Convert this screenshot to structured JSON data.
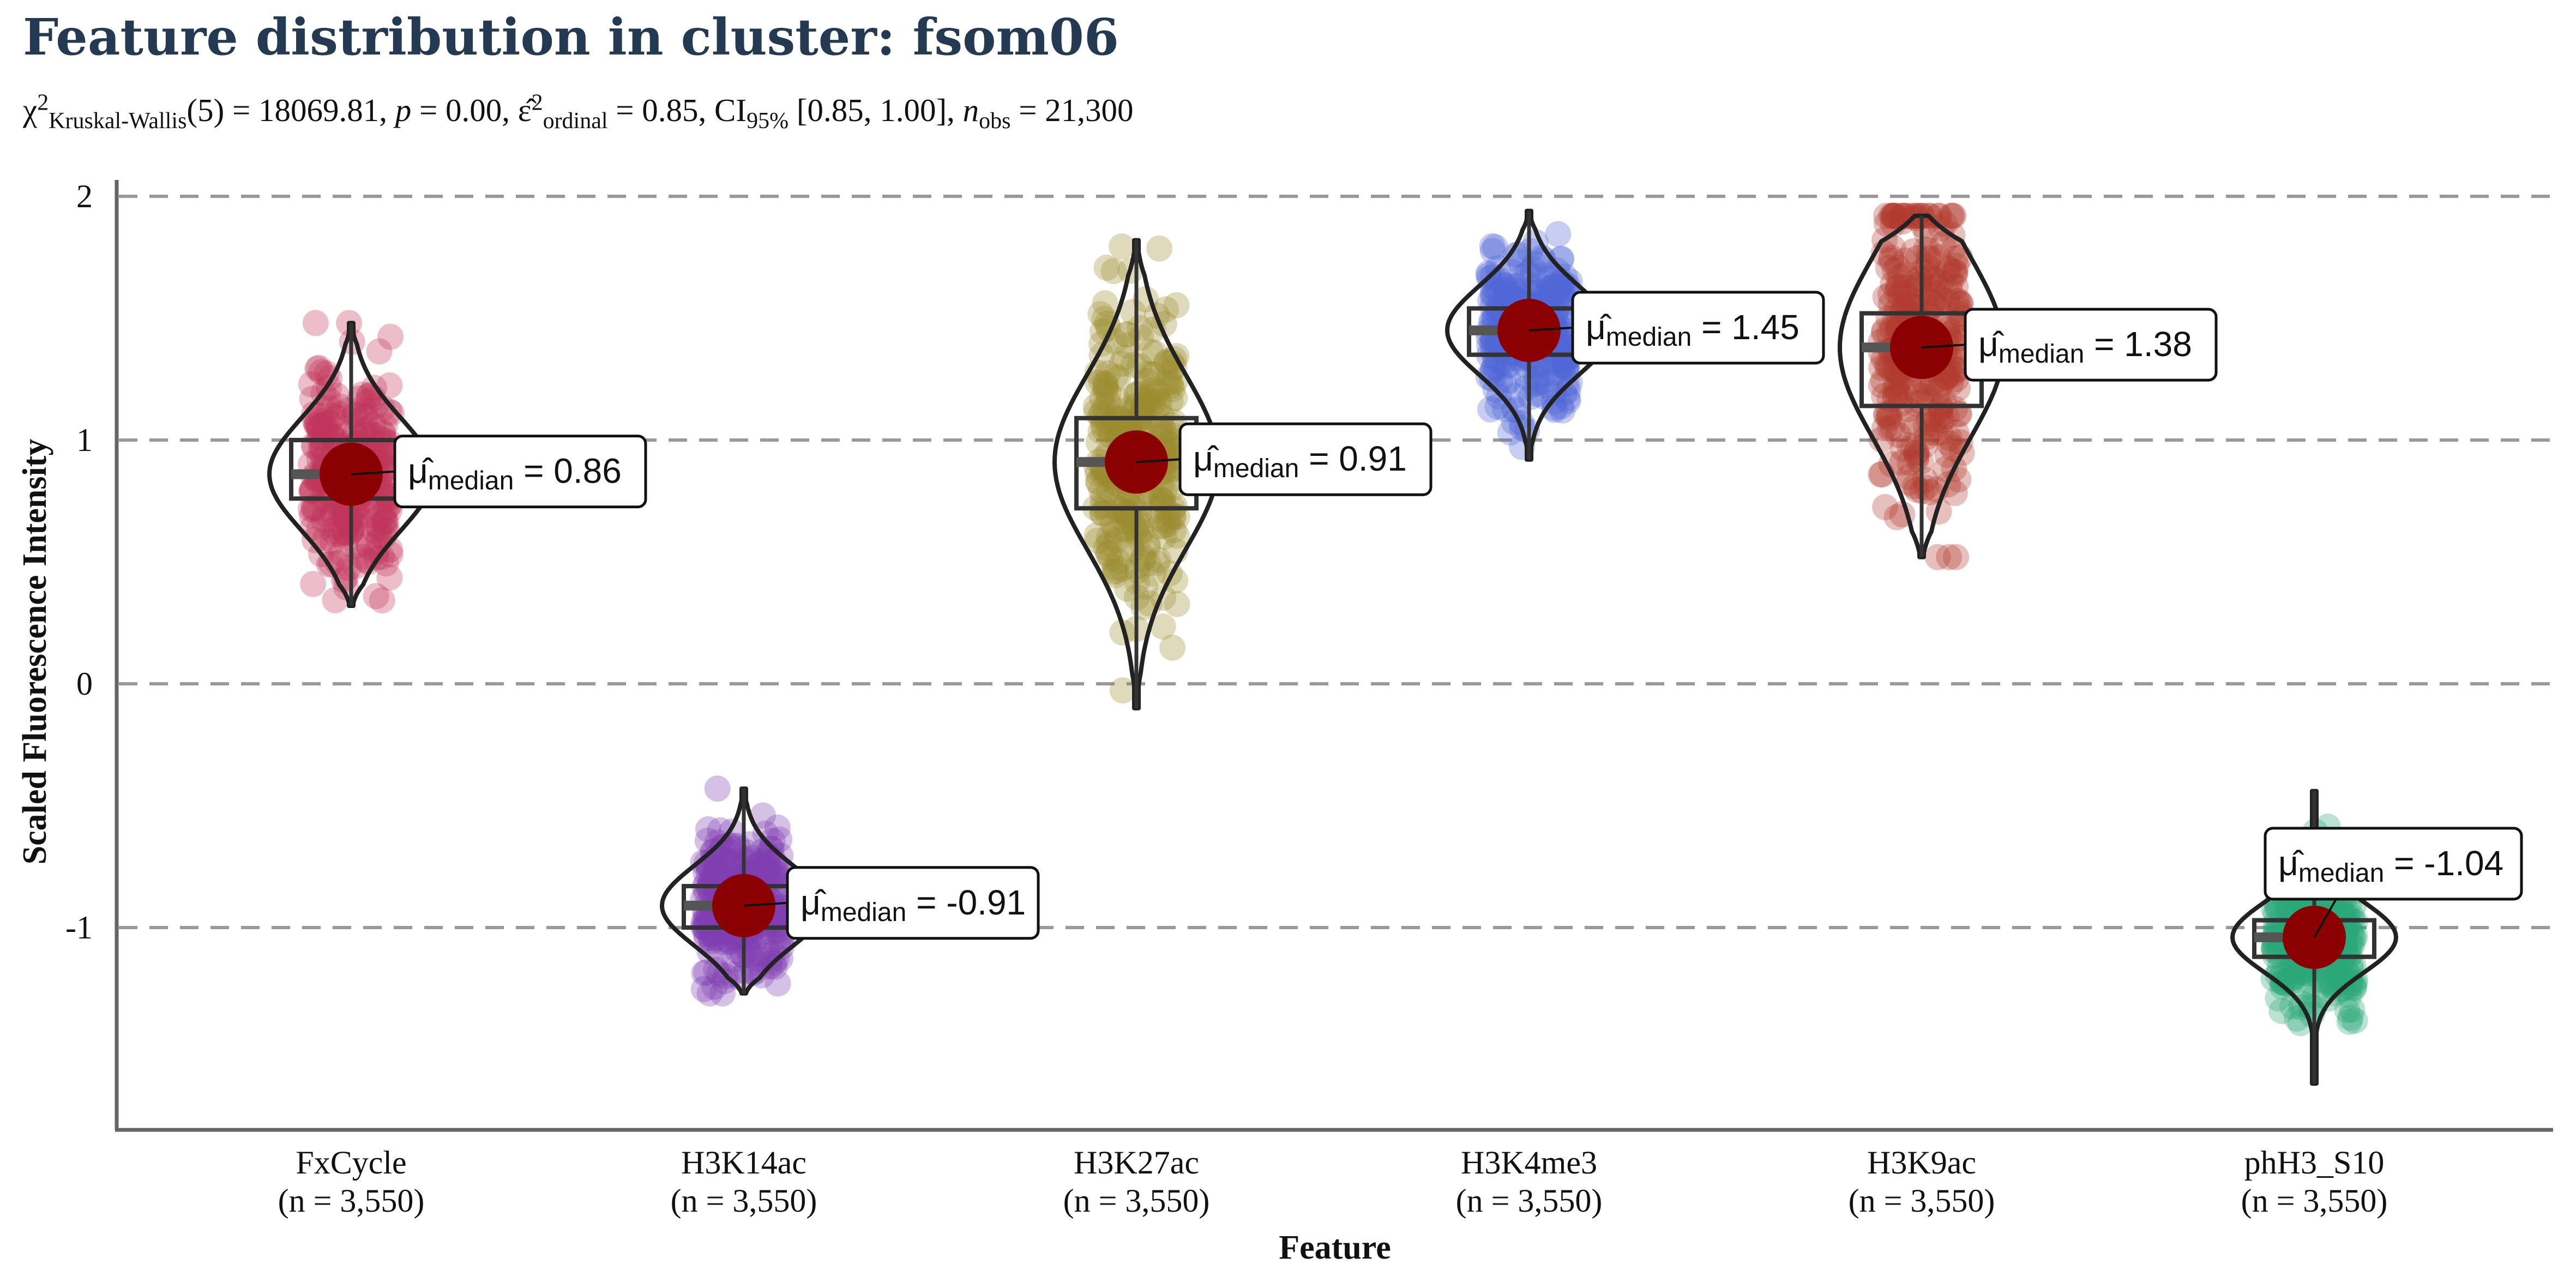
{
  "chart_data": {
    "type": "violin",
    "title": "Feature distribution in cluster: fsom06",
    "subtitle": {
      "chi_symbol": "χ",
      "chi_sup": "2",
      "chi_sub": "Kruskal-Wallis",
      "df_text": "(5) = 18069.81, ",
      "p_label": "p",
      "p_text": " = 0.00, ",
      "eps_symbol": "ε̂",
      "eps_sup": "2",
      "eps_sub": "ordinal",
      "eps_text": " = 0.85, CI",
      "ci_sub": "95%",
      "ci_text": " [0.85, 1.00], ",
      "n_label": "n",
      "n_sub": "obs",
      "n_text": " = 21,300"
    },
    "xlabel": "Feature",
    "ylabel": "Scaled Fluorescence Intensity",
    "ylim": [
      -1.83,
      2.05
    ],
    "yticks": [
      2,
      1,
      0,
      -1
    ],
    "ytick_labels": [
      "2",
      "1",
      "0",
      "-1"
    ],
    "grid": "horizontal dashed at major ticks",
    "median_label_prefix": "μ̂",
    "median_label_sub": "median",
    "median_point_color": "#8b0000",
    "series": [
      {
        "category": "FxCycle",
        "n_label": "(n = 3,550)",
        "color": "#c2345a",
        "median": 0.86,
        "median_text": "= 0.86",
        "q1": 0.76,
        "q3": 1.0,
        "min": 0.32,
        "max": 1.48,
        "label_side": "right"
      },
      {
        "category": "H3K14ac",
        "n_label": "(n = 3,550)",
        "color": "#7e3fb0",
        "median": -0.91,
        "median_text": "= -0.91",
        "q1": -1.0,
        "q3": -0.83,
        "min": -1.27,
        "max": -0.43,
        "label_side": "right"
      },
      {
        "category": "H3K27ac",
        "n_label": "(n = 3,550)",
        "color": "#9c8b2e",
        "median": 0.91,
        "median_text": "= 0.91",
        "q1": 0.72,
        "q3": 1.09,
        "min": -0.1,
        "max": 1.82,
        "label_side": "right"
      },
      {
        "category": "H3K4me3",
        "n_label": "(n = 3,550)",
        "color": "#5068d8",
        "median": 1.45,
        "median_text": "= 1.45",
        "q1": 1.35,
        "q3": 1.54,
        "min": 0.92,
        "max": 1.94,
        "label_side": "right"
      },
      {
        "category": "H3K9ac",
        "n_label": "(n = 3,550)",
        "color": "#b03a2e",
        "median": 1.38,
        "median_text": "= 1.38",
        "q1": 1.14,
        "q3": 1.52,
        "min": 0.52,
        "max": 1.92,
        "label_side": "right"
      },
      {
        "category": "phH3_S10",
        "n_label": "(n = 3,550)",
        "color": "#2aa97a",
        "median": -1.04,
        "median_text": "= -1.04",
        "q1": -1.12,
        "q3": -0.97,
        "min": -1.64,
        "max": -0.44,
        "label_side": "above"
      }
    ]
  }
}
